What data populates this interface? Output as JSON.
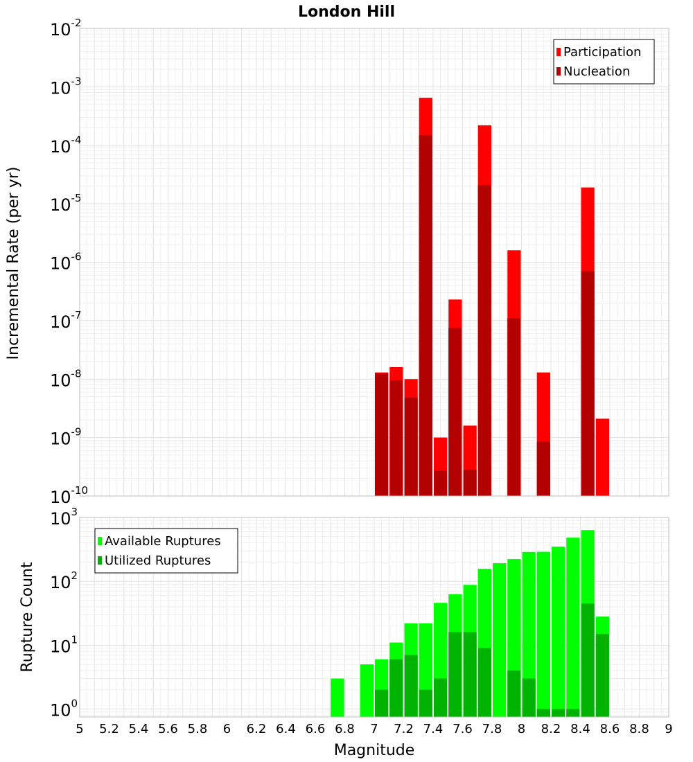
{
  "chart_data": [
    {
      "type": "bar",
      "title": "London Hill",
      "ylabel": "Incremental Rate (per yr)",
      "yscale": "log",
      "ylim": [
        1e-10,
        0.01
      ],
      "ytick_labels": [
        {
          "base": "10",
          "exp": "-10"
        },
        {
          "base": "10",
          "exp": "-9"
        },
        {
          "base": "10",
          "exp": "-8"
        },
        {
          "base": "10",
          "exp": "-7"
        },
        {
          "base": "10",
          "exp": "-6"
        },
        {
          "base": "10",
          "exp": "-5"
        },
        {
          "base": "10",
          "exp": "-4"
        },
        {
          "base": "10",
          "exp": "-3"
        },
        {
          "base": "10",
          "exp": "-2"
        }
      ],
      "grid": true,
      "legend_position": "top-right",
      "series": [
        {
          "name": "Participation",
          "color": "#ff0000",
          "points": [
            {
              "x": 7.05,
              "y": 1.3e-08
            },
            {
              "x": 7.15,
              "y": 1.6e-08
            },
            {
              "x": 7.25,
              "y": 1e-08
            },
            {
              "x": 7.35,
              "y": 0.00065
            },
            {
              "x": 7.45,
              "y": 1e-09
            },
            {
              "x": 7.55,
              "y": 2.3e-07
            },
            {
              "x": 7.65,
              "y": 1.6e-09
            },
            {
              "x": 7.75,
              "y": 0.00022
            },
            {
              "x": 7.95,
              "y": 1.6e-06
            },
            {
              "x": 8.15,
              "y": 1.3e-08
            },
            {
              "x": 8.45,
              "y": 1.9e-05
            },
            {
              "x": 8.55,
              "y": 2.1e-09
            }
          ]
        },
        {
          "name": "Nucleation",
          "color": "#b30000",
          "points": [
            {
              "x": 7.05,
              "y": 1.25e-08
            },
            {
              "x": 7.15,
              "y": 9.5e-09
            },
            {
              "x": 7.25,
              "y": 4.8e-09
            },
            {
              "x": 7.35,
              "y": 0.00015
            },
            {
              "x": 7.45,
              "y": 2.7e-10
            },
            {
              "x": 7.55,
              "y": 7.5e-08
            },
            {
              "x": 7.65,
              "y": 2.8e-10
            },
            {
              "x": 7.75,
              "y": 2.1e-05
            },
            {
              "x": 7.95,
              "y": 1.1e-07
            },
            {
              "x": 8.15,
              "y": 8.5e-10
            },
            {
              "x": 8.45,
              "y": 7e-07
            }
          ]
        }
      ]
    },
    {
      "type": "bar",
      "xlabel": "Magnitude",
      "ylabel": "Rupture Count",
      "xlim": [
        5,
        9
      ],
      "xticks": [
        "5",
        "5.2",
        "5.4",
        "5.6",
        "5.8",
        "6",
        "6.2",
        "6.4",
        "6.6",
        "6.8",
        "7",
        "7.2",
        "7.4",
        "7.6",
        "7.8",
        "8",
        "8.2",
        "8.4",
        "8.6",
        "8.8",
        "9"
      ],
      "yscale": "log",
      "ylim": [
        0.75,
        1000
      ],
      "ytick_labels": [
        {
          "base": "10",
          "exp": "0"
        },
        {
          "base": "10",
          "exp": "1"
        },
        {
          "base": "10",
          "exp": "2"
        },
        {
          "base": "10",
          "exp": "3"
        }
      ],
      "grid": true,
      "legend_position": "top-left",
      "series": [
        {
          "name": "Available Ruptures",
          "color": "#00ff00",
          "points": [
            {
              "x": 6.75,
              "y": 3
            },
            {
              "x": 6.95,
              "y": 5
            },
            {
              "x": 7.05,
              "y": 6
            },
            {
              "x": 7.15,
              "y": 11
            },
            {
              "x": 7.25,
              "y": 22
            },
            {
              "x": 7.35,
              "y": 22
            },
            {
              "x": 7.45,
              "y": 46
            },
            {
              "x": 7.55,
              "y": 63
            },
            {
              "x": 7.65,
              "y": 88
            },
            {
              "x": 7.75,
              "y": 157
            },
            {
              "x": 7.85,
              "y": 192
            },
            {
              "x": 7.95,
              "y": 223
            },
            {
              "x": 8.05,
              "y": 288
            },
            {
              "x": 8.15,
              "y": 290
            },
            {
              "x": 8.25,
              "y": 349
            },
            {
              "x": 8.35,
              "y": 483
            },
            {
              "x": 8.45,
              "y": 634
            },
            {
              "x": 8.55,
              "y": 28
            }
          ]
        },
        {
          "name": "Utilized Ruptures",
          "color": "#00b300",
          "points": [
            {
              "x": 7.05,
              "y": 2
            },
            {
              "x": 7.15,
              "y": 6
            },
            {
              "x": 7.25,
              "y": 7
            },
            {
              "x": 7.35,
              "y": 2
            },
            {
              "x": 7.45,
              "y": 3
            },
            {
              "x": 7.55,
              "y": 16
            },
            {
              "x": 7.65,
              "y": 16
            },
            {
              "x": 7.75,
              "y": 9
            },
            {
              "x": 7.95,
              "y": 4
            },
            {
              "x": 8.05,
              "y": 3
            },
            {
              "x": 8.15,
              "y": 1
            },
            {
              "x": 8.25,
              "y": 1
            },
            {
              "x": 8.35,
              "y": 1
            },
            {
              "x": 8.45,
              "y": 45
            },
            {
              "x": 8.55,
              "y": 15
            }
          ]
        }
      ]
    }
  ]
}
